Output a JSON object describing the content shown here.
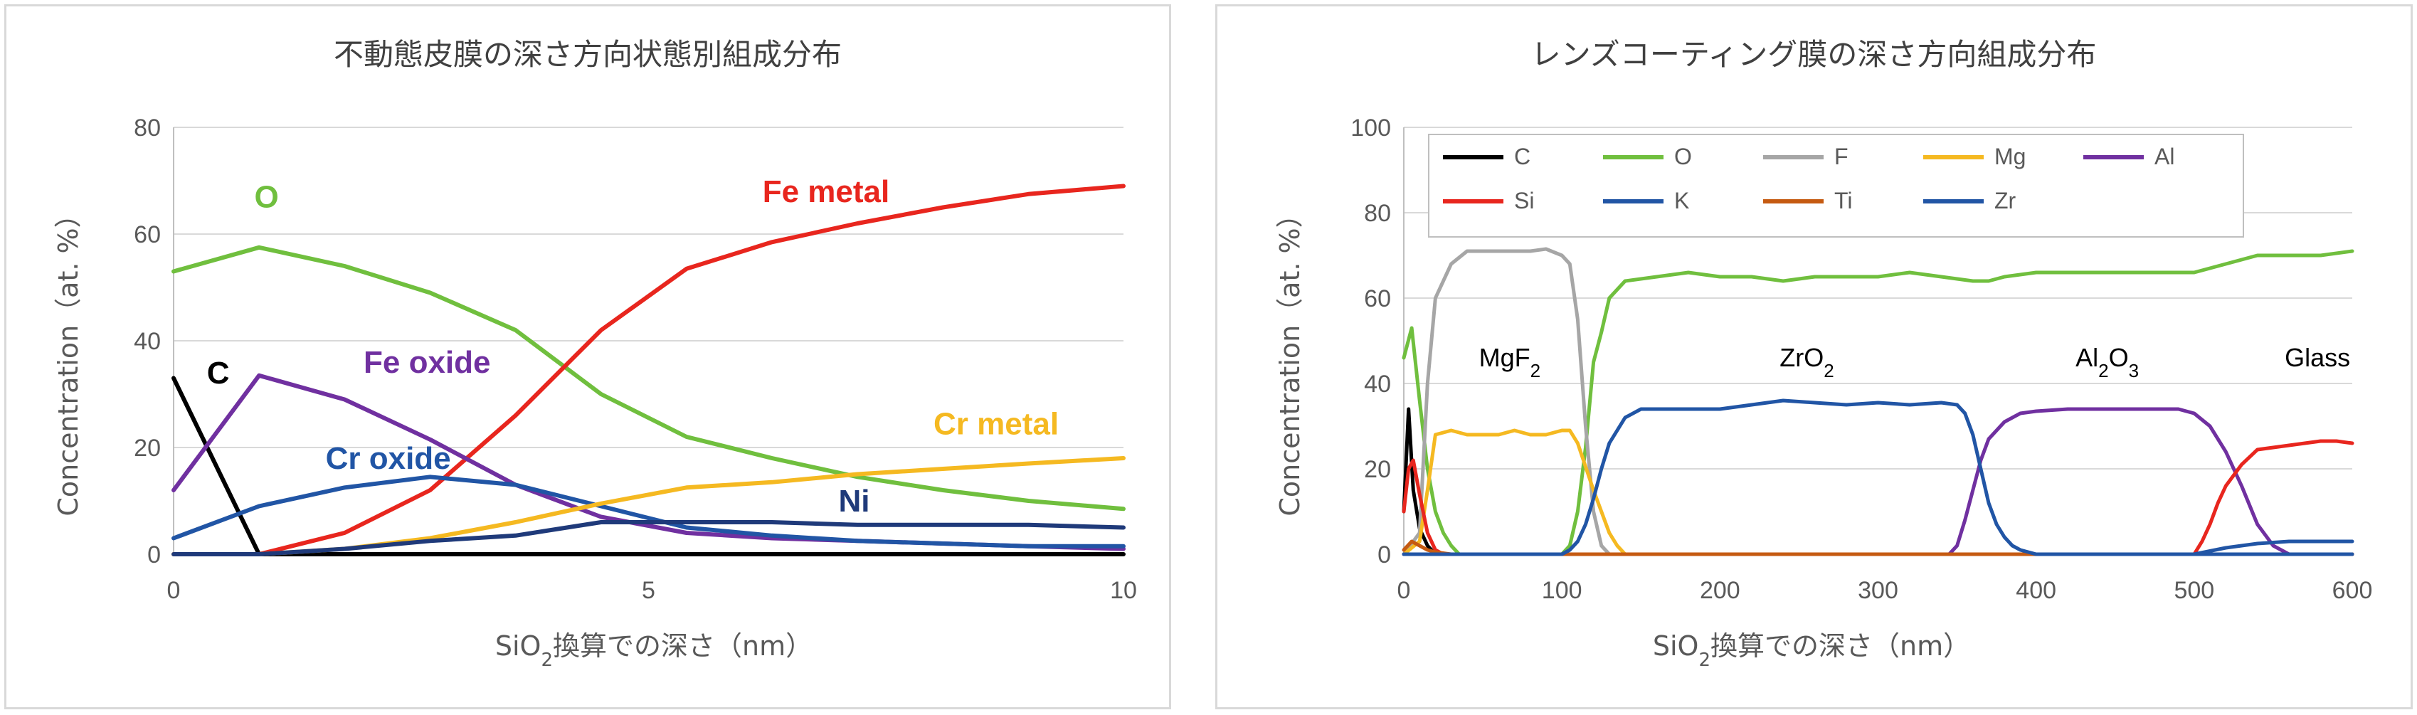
{
  "chart_data": [
    {
      "type": "line",
      "title": "不動態皮膜の深さ方向状態別組成分布",
      "xlabel_main": "SiO",
      "xlabel_sub": "2",
      "xlabel_rest": "換算での深さ（nm）",
      "ylabel": "Concentration（at. %）",
      "xlim": [
        0,
        10
      ],
      "ylim": [
        0,
        80
      ],
      "xticks": [
        0,
        5,
        10
      ],
      "yticks": [
        0,
        20,
        40,
        60,
        80
      ],
      "grid": "horizontal",
      "legend": "none",
      "x": [
        0,
        0.9,
        1.8,
        2.7,
        3.6,
        4.5,
        5.4,
        6.3,
        7.2,
        8.1,
        9,
        10
      ],
      "series": [
        {
          "name": "C",
          "color": "#000000",
          "x": [
            0,
            0.9,
            10
          ],
          "values": [
            33,
            0,
            0
          ]
        },
        {
          "name": "O",
          "color": "#70bf3e",
          "values": [
            53,
            57.5,
            54,
            49,
            42,
            30,
            22,
            18,
            14.5,
            12,
            10,
            8.5
          ]
        },
        {
          "name": "Fe metal",
          "color": "#e8261e",
          "values": [
            0,
            0,
            4,
            12,
            26,
            42,
            53.5,
            58.5,
            62,
            65,
            67.5,
            69
          ]
        },
        {
          "name": "Fe oxide",
          "color": "#7030a0",
          "values": [
            12,
            33.5,
            29,
            21.5,
            13,
            7,
            4,
            3,
            2.5,
            2,
            1.5,
            1
          ]
        },
        {
          "name": "Cr oxide",
          "color": "#2155a5",
          "values": [
            3,
            9,
            12.5,
            14.5,
            13,
            9,
            5,
            3.5,
            2.5,
            2,
            1.5,
            1.5
          ]
        },
        {
          "name": "Cr metal",
          "color": "#f5b921",
          "values": [
            0,
            0,
            1,
            3,
            6,
            9.5,
            12.5,
            13.5,
            15,
            16,
            17,
            18
          ]
        },
        {
          "name": "Ni",
          "color": "#1f3a7a",
          "values": [
            0,
            0,
            1,
            2.5,
            3.5,
            6,
            6,
            6,
            5.5,
            5.5,
            5.5,
            5
          ]
        }
      ],
      "annotations": [
        {
          "text": "O",
          "color": "#70bf3e",
          "x": 0.85,
          "y": 65
        },
        {
          "text": "Fe metal",
          "color": "#e8261e",
          "x": 6.2,
          "y": 66
        },
        {
          "text": "C",
          "color": "#000000",
          "x": 0.35,
          "y": 32
        },
        {
          "text": "Fe oxide",
          "color": "#7030a0",
          "x": 2.0,
          "y": 34
        },
        {
          "text": "Cr metal",
          "color": "#f5b921",
          "x": 8.0,
          "y": 22.5
        },
        {
          "text": "Cr oxide",
          "color": "#2155a5",
          "x": 1.6,
          "y": 16
        },
        {
          "text": "Ni",
          "color": "#1f3a7a",
          "x": 7.0,
          "y": 8
        }
      ]
    },
    {
      "type": "line",
      "title": "レンズコーティング膜の深さ方向組成分布",
      "xlabel_main": "SiO",
      "xlabel_sub": "2",
      "xlabel_rest": "換算での深さ（nm）",
      "ylabel": "Concentration（at. %）",
      "xlim": [
        0,
        600
      ],
      "ylim": [
        0,
        100
      ],
      "xticks": [
        0,
        100,
        200,
        300,
        400,
        500,
        600
      ],
      "yticks": [
        0,
        20,
        40,
        60,
        80,
        100
      ],
      "grid": "horizontal",
      "legend": "top-left",
      "series": [
        {
          "name": "C",
          "color": "#000000",
          "x": [
            0,
            3,
            6,
            10,
            15,
            20,
            600
          ],
          "values": [
            10,
            34,
            15,
            6,
            2,
            0,
            0
          ]
        },
        {
          "name": "O",
          "color": "#70bf3e",
          "x": [
            0,
            5,
            10,
            15,
            20,
            25,
            30,
            35,
            100,
            105,
            110,
            115,
            120,
            125,
            130,
            140,
            160,
            180,
            200,
            220,
            240,
            260,
            280,
            300,
            320,
            340,
            360,
            370,
            380,
            400,
            420,
            440,
            460,
            480,
            500,
            520,
            540,
            560,
            580,
            600
          ],
          "values": [
            46,
            53,
            36,
            20,
            10,
            5,
            2,
            0,
            0,
            2,
            10,
            25,
            45,
            52,
            60,
            64,
            65,
            66,
            65,
            65,
            64,
            65,
            65,
            65,
            66,
            65,
            64,
            64,
            65,
            66,
            66,
            66,
            66,
            66,
            66,
            68,
            70,
            70,
            70,
            71
          ]
        },
        {
          "name": "F",
          "color": "#a6a6a6",
          "x": [
            0,
            10,
            15,
            20,
            30,
            40,
            50,
            60,
            70,
            80,
            90,
            100,
            105,
            110,
            115,
            120,
            125,
            130,
            600
          ],
          "values": [
            0,
            5,
            40,
            60,
            68,
            71,
            71,
            71,
            71,
            71,
            71.5,
            70,
            68,
            55,
            30,
            10,
            2,
            0,
            0
          ]
        },
        {
          "name": "Mg",
          "color": "#f5b921",
          "x": [
            0,
            10,
            15,
            20,
            30,
            40,
            50,
            60,
            70,
            80,
            90,
            100,
            105,
            110,
            120,
            130,
            135,
            140,
            150,
            600
          ],
          "values": [
            0,
            3,
            15,
            28,
            29,
            28,
            28,
            28,
            29,
            28,
            28,
            29,
            29,
            26,
            15,
            5,
            2,
            0,
            0,
            0
          ]
        },
        {
          "name": "Al",
          "color": "#7030a0",
          "x": [
            0,
            345,
            350,
            355,
            360,
            365,
            370,
            380,
            390,
            400,
            420,
            440,
            460,
            480,
            490,
            500,
            510,
            520,
            530,
            540,
            550,
            560,
            600
          ],
          "values": [
            0,
            0,
            2,
            8,
            15,
            22,
            27,
            31,
            33,
            33.5,
            34,
            34,
            34,
            34,
            34,
            33,
            30,
            24,
            16,
            7,
            2,
            0,
            0
          ]
        },
        {
          "name": "Si",
          "color": "#e8261e",
          "x": [
            0,
            3,
            6,
            10,
            15,
            20,
            25,
            500,
            505,
            510,
            515,
            520,
            530,
            540,
            550,
            560,
            570,
            580,
            590,
            600
          ],
          "values": [
            10,
            20,
            22,
            14,
            5,
            1,
            0,
            0,
            3,
            7,
            12,
            16,
            21,
            24.5,
            25,
            25.5,
            26,
            26.5,
            26.5,
            26
          ]
        },
        {
          "name": "K",
          "color": "#2155a5",
          "x": [
            0,
            500,
            520,
            540,
            560,
            580,
            600
          ],
          "values": [
            0,
            0,
            1.5,
            2.5,
            3,
            3,
            3
          ]
        },
        {
          "name": "Ti",
          "color": "#c55a11",
          "x": [
            0,
            5,
            10,
            15,
            20,
            30,
            400,
            600
          ],
          "values": [
            1,
            3,
            2,
            1,
            0.5,
            0,
            0,
            0
          ]
        },
        {
          "name": "Zr",
          "color": "#2155a5",
          "x": [
            0,
            100,
            105,
            110,
            115,
            120,
            125,
            130,
            140,
            150,
            160,
            180,
            200,
            220,
            240,
            260,
            280,
            300,
            320,
            340,
            350,
            355,
            360,
            365,
            370,
            375,
            380,
            385,
            390,
            395,
            400,
            600
          ],
          "values": [
            0,
            0,
            1,
            3,
            7,
            13,
            20,
            26,
            32,
            34,
            34,
            34,
            34,
            35,
            36,
            35.5,
            35,
            35.5,
            35,
            35.5,
            35,
            33,
            28,
            20,
            12,
            7,
            4,
            2,
            1,
            0.5,
            0,
            0
          ]
        }
      ],
      "annotations": [
        {
          "main": "MgF",
          "sub": "2",
          "x": 67,
          "y": 44
        },
        {
          "main": "ZrO",
          "sub": "2",
          "x": 255,
          "y": 44
        },
        {
          "main": "Al",
          "sub": "2",
          "main2": "O",
          "sub2": "3",
          "x": 445,
          "y": 44
        },
        {
          "main": "Glass",
          "x": 578,
          "y": 44
        }
      ]
    }
  ]
}
